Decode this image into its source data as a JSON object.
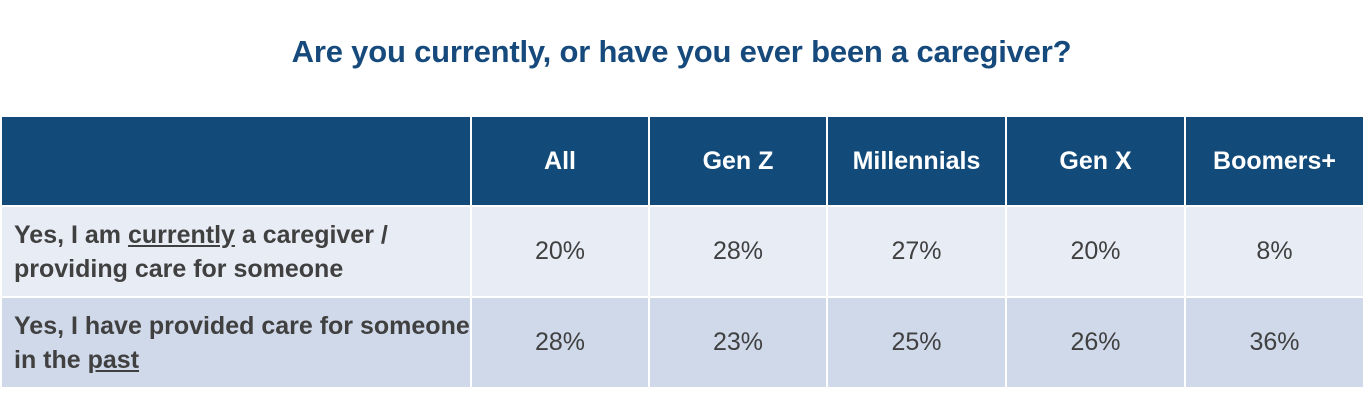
{
  "title": "Are you currently, or have you ever been a caregiver?",
  "colors": {
    "title": "#174a7c",
    "header_bg": "#124a7a",
    "row_1_bg": "#e8ecf5",
    "row_2_bg": "#cfd9ea"
  },
  "chart_data": {
    "type": "table",
    "title": "Are you currently, or have you ever been a caregiver?",
    "columns": [
      "",
      "All",
      "Gen Z",
      "Millennials",
      "Gen X",
      "Boomers+"
    ],
    "rows": [
      {
        "label_parts": [
          "Yes, I am ",
          "currently",
          " a caregiver / providing care for someone"
        ],
        "values": [
          "20%",
          "28%",
          "27%",
          "20%",
          "8%"
        ]
      },
      {
        "label_parts": [
          "Yes, I have provided care for someone in the ",
          "past",
          ""
        ],
        "values": [
          "28%",
          "23%",
          "25%",
          "26%",
          "36%"
        ]
      }
    ]
  }
}
